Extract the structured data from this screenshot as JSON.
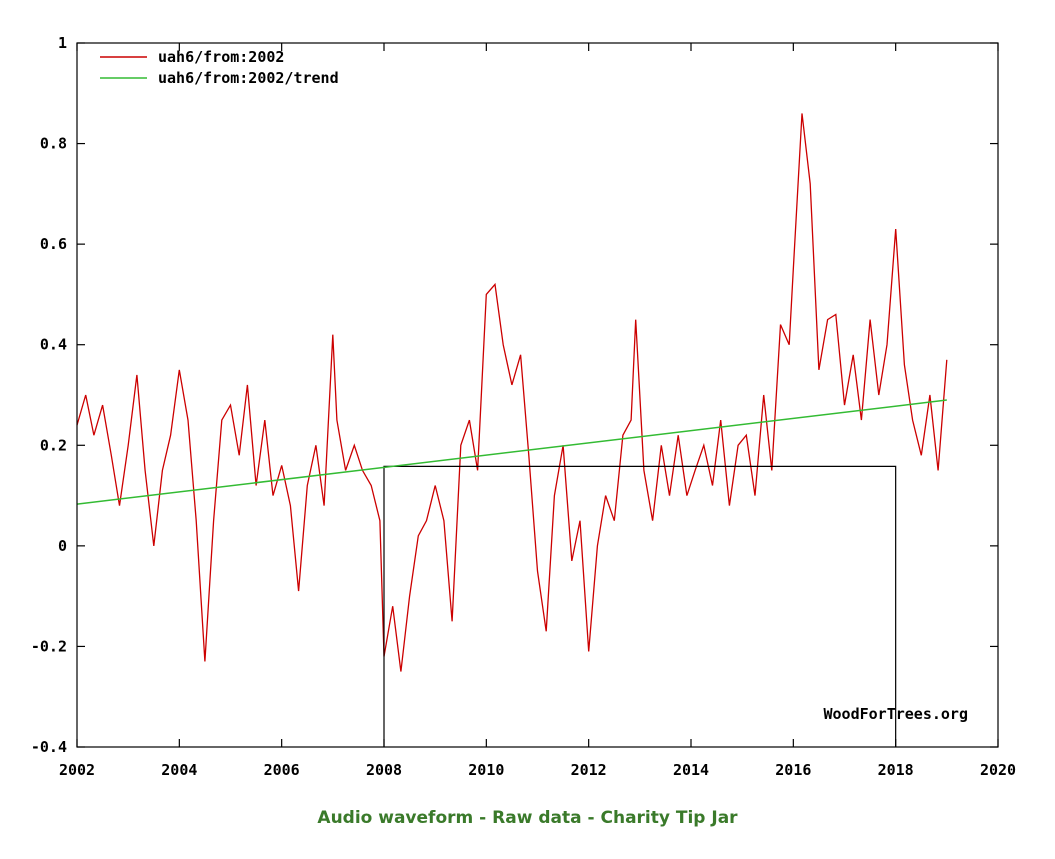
{
  "chart_data": {
    "type": "line",
    "xlim": [
      2002,
      2020
    ],
    "ylim": [
      -0.4,
      1
    ],
    "xticks": [
      "2002",
      "2004",
      "2006",
      "2008",
      "2010",
      "2012",
      "2014",
      "2016",
      "2018",
      "2020"
    ],
    "yticks": [
      "-0.4",
      "-0.2",
      "0",
      "0.2",
      "0.4",
      "0.6",
      "0.8",
      "1"
    ],
    "grid": false,
    "legend_position": "top-left",
    "credit": "WoodForTrees.org",
    "series": [
      {
        "name": "uah6/from:2002",
        "color": "#cc0000",
        "x": [
          2002.0,
          2002.17,
          2002.33,
          2002.5,
          2002.67,
          2002.83,
          2003.0,
          2003.17,
          2003.33,
          2003.5,
          2003.67,
          2003.83,
          2004.0,
          2004.17,
          2004.33,
          2004.5,
          2004.67,
          2004.83,
          2005.0,
          2005.17,
          2005.33,
          2005.5,
          2005.67,
          2005.83,
          2006.0,
          2006.17,
          2006.33,
          2006.5,
          2006.67,
          2006.83,
          2007.0,
          2007.08,
          2007.25,
          2007.42,
          2007.58,
          2007.75,
          2007.92,
          2008.0,
          2008.17,
          2008.33,
          2008.5,
          2008.67,
          2008.83,
          2009.0,
          2009.17,
          2009.33,
          2009.5,
          2009.67,
          2009.83,
          2010.0,
          2010.17,
          2010.33,
          2010.5,
          2010.67,
          2010.83,
          2011.0,
          2011.17,
          2011.33,
          2011.5,
          2011.67,
          2011.83,
          2012.0,
          2012.17,
          2012.33,
          2012.5,
          2012.67,
          2012.83,
          2012.92,
          2013.08,
          2013.25,
          2013.42,
          2013.58,
          2013.75,
          2013.92,
          2014.08,
          2014.25,
          2014.42,
          2014.58,
          2014.75,
          2014.92,
          2015.08,
          2015.25,
          2015.42,
          2015.58,
          2015.75,
          2015.92,
          2016.0,
          2016.17,
          2016.33,
          2016.5,
          2016.67,
          2016.83,
          2017.0,
          2017.17,
          2017.33,
          2017.5,
          2017.67,
          2017.83,
          2018.0,
          2018.17,
          2018.33,
          2018.5,
          2018.67,
          2018.83,
          2019.0
        ],
        "y": [
          0.24,
          0.3,
          0.22,
          0.28,
          0.18,
          0.08,
          0.2,
          0.34,
          0.15,
          0.0,
          0.15,
          0.22,
          0.35,
          0.25,
          0.05,
          -0.23,
          0.05,
          0.25,
          0.28,
          0.18,
          0.32,
          0.12,
          0.25,
          0.1,
          0.16,
          0.08,
          -0.09,
          0.12,
          0.2,
          0.08,
          0.42,
          0.25,
          0.15,
          0.2,
          0.15,
          0.12,
          0.05,
          -0.22,
          -0.12,
          -0.25,
          -0.1,
          0.02,
          0.05,
          0.12,
          0.05,
          -0.15,
          0.2,
          0.25,
          0.15,
          0.5,
          0.52,
          0.4,
          0.32,
          0.38,
          0.18,
          -0.05,
          -0.17,
          0.1,
          0.2,
          -0.03,
          0.05,
          -0.21,
          0.0,
          0.1,
          0.05,
          0.22,
          0.25,
          0.45,
          0.15,
          0.05,
          0.2,
          0.1,
          0.22,
          0.1,
          0.15,
          0.2,
          0.12,
          0.25,
          0.08,
          0.2,
          0.22,
          0.1,
          0.3,
          0.15,
          0.44,
          0.4,
          0.55,
          0.86,
          0.72,
          0.35,
          0.45,
          0.46,
          0.28,
          0.38,
          0.25,
          0.45,
          0.3,
          0.4,
          0.63,
          0.36,
          0.25,
          0.18,
          0.3,
          0.15,
          0.37
        ]
      },
      {
        "name": "uah6/from:2002/trend",
        "color": "#33bb33",
        "x": [
          2002.0,
          2019.0
        ],
        "y": [
          0.083,
          0.29
        ]
      }
    ],
    "annotation_box": {
      "x": [
        2008.0,
        2018.0
      ],
      "y": [
        -0.4,
        0.158
      ]
    }
  },
  "footer": {
    "link1": "Audio waveform",
    "sep1": " - ",
    "link2": "Raw data",
    "sep2": " - ",
    "link3": "Charity Tip Jar"
  }
}
